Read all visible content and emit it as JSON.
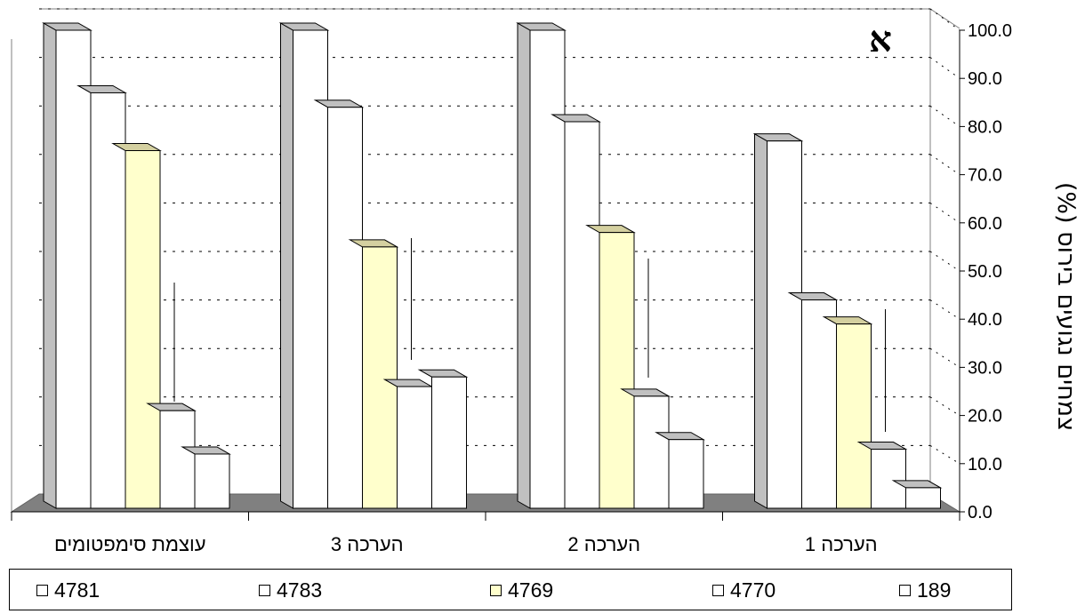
{
  "chart_data": {
    "type": "bar",
    "corner_label": "א",
    "ylabel": "צמחים נגועים בירוס (%)",
    "ylim": [
      0,
      100
    ],
    "y_ticks": [
      "0.0",
      "10.0",
      "20.0",
      "30.0",
      "40.0",
      "50.0",
      "60.0",
      "70.0",
      "80.0",
      "90.0",
      "100.0"
    ],
    "categories": [
      "עוצמת סימפטומים",
      "הערכה 3",
      "הערכה 2",
      "הערכה 1"
    ],
    "series": [
      {
        "name": "4781",
        "color": "#ffffff",
        "values": [
          100,
          100,
          100,
          77
        ]
      },
      {
        "name": "4783",
        "color": "#ffffff",
        "values": [
          87,
          84,
          81,
          44
        ]
      },
      {
        "name": "4769",
        "color": "#ffffcc",
        "values": [
          75,
          55,
          58,
          39
        ]
      },
      {
        "name": "4770",
        "color": "#ffffff",
        "values": [
          21,
          26,
          24,
          13
        ]
      },
      {
        "name": "189",
        "color": "#ffffff",
        "values": [
          12,
          28,
          15,
          5
        ]
      }
    ],
    "grid": true,
    "legend_position": "bottom"
  }
}
